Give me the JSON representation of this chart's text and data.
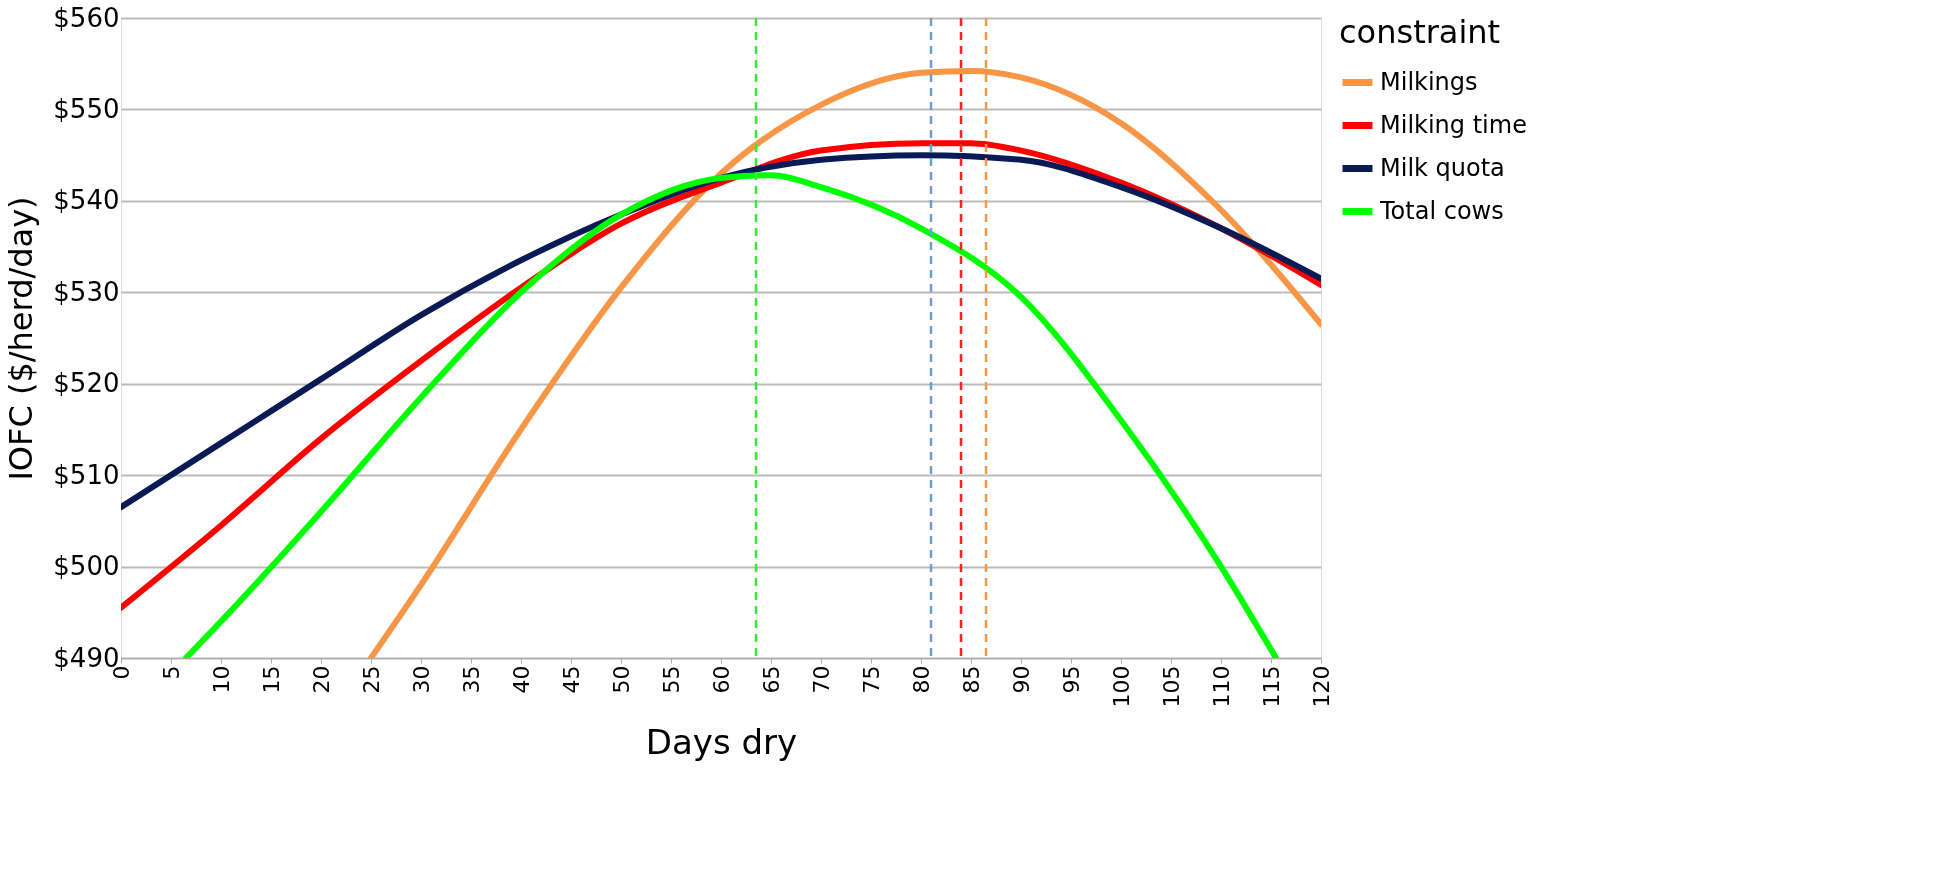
{
  "chart_data": {
    "type": "line",
    "xlabel": "Days dry",
    "ylabel": "IOFC ($/herd/day)",
    "legend_title": "constraint",
    "legend": "right",
    "grid": "y",
    "line_style": "solid",
    "marker": "none",
    "xlim": [
      0,
      120
    ],
    "xticks": [
      0,
      5,
      10,
      15,
      20,
      25,
      30,
      35,
      40,
      45,
      50,
      55,
      60,
      65,
      70,
      75,
      80,
      85,
      90,
      95,
      100,
      105,
      110,
      115,
      120
    ],
    "ylim": [
      490,
      560
    ],
    "yticks": [
      {
        "value": 490,
        "label": "$490"
      },
      {
        "value": 500,
        "label": "$500"
      },
      {
        "value": 510,
        "label": "$510"
      },
      {
        "value": 520,
        "label": "$520"
      },
      {
        "value": 530,
        "label": "$530"
      },
      {
        "value": 540,
        "label": "$540"
      },
      {
        "value": 550,
        "label": "$550"
      },
      {
        "value": 560,
        "label": "$560"
      }
    ],
    "series": [
      {
        "name": "Milkings",
        "color": "#f79646",
        "x": [
          25,
          30,
          40,
          50,
          60,
          70,
          80,
          85,
          90,
          100,
          110,
          120
        ],
        "values": [
          490,
          498,
          515,
          530.5,
          543,
          550.5,
          554,
          554.2,
          553.5,
          548.5,
          539,
          526.5
        ]
      },
      {
        "name": "Milking time",
        "color": "#ff0000",
        "x": [
          0,
          10,
          20,
          30,
          40,
          50,
          60,
          70,
          80,
          85,
          90,
          100,
          110,
          120
        ],
        "values": [
          495.5,
          504.5,
          514,
          522.5,
          530.5,
          537.5,
          542,
          545.5,
          546.3,
          546.3,
          545.5,
          542,
          537,
          530.8
        ]
      },
      {
        "name": "Milk quota",
        "color": "#0a1a55",
        "x": [
          0,
          10,
          20,
          30,
          40,
          50,
          60,
          70,
          80,
          90,
          100,
          110,
          120
        ],
        "values": [
          506.5,
          513.5,
          520.5,
          527.5,
          533.5,
          538.5,
          542.5,
          544.5,
          545,
          544.5,
          541.5,
          537,
          531.5
        ]
      },
      {
        "name": "Total cows",
        "color": "#00ff00",
        "x": [
          6.5,
          10,
          20,
          30,
          40,
          50,
          60,
          65,
          70,
          80,
          90,
          100,
          110,
          115.5
        ],
        "values": [
          490,
          494,
          506,
          518.5,
          530,
          538.5,
          542.5,
          542.8,
          541.5,
          537,
          529.5,
          516,
          500,
          490
        ]
      }
    ],
    "ref_lines": [
      {
        "axis": "x",
        "value": 63.5,
        "color": "#33ee33",
        "line_style": "dashed"
      },
      {
        "axis": "x",
        "value": 81,
        "color": "#6f9bd8",
        "line_style": "dashed"
      },
      {
        "axis": "x",
        "value": 84,
        "color": "#ff2222",
        "line_style": "dashed"
      },
      {
        "axis": "x",
        "value": 86.5,
        "color": "#f79646",
        "line_style": "dashed"
      }
    ]
  }
}
